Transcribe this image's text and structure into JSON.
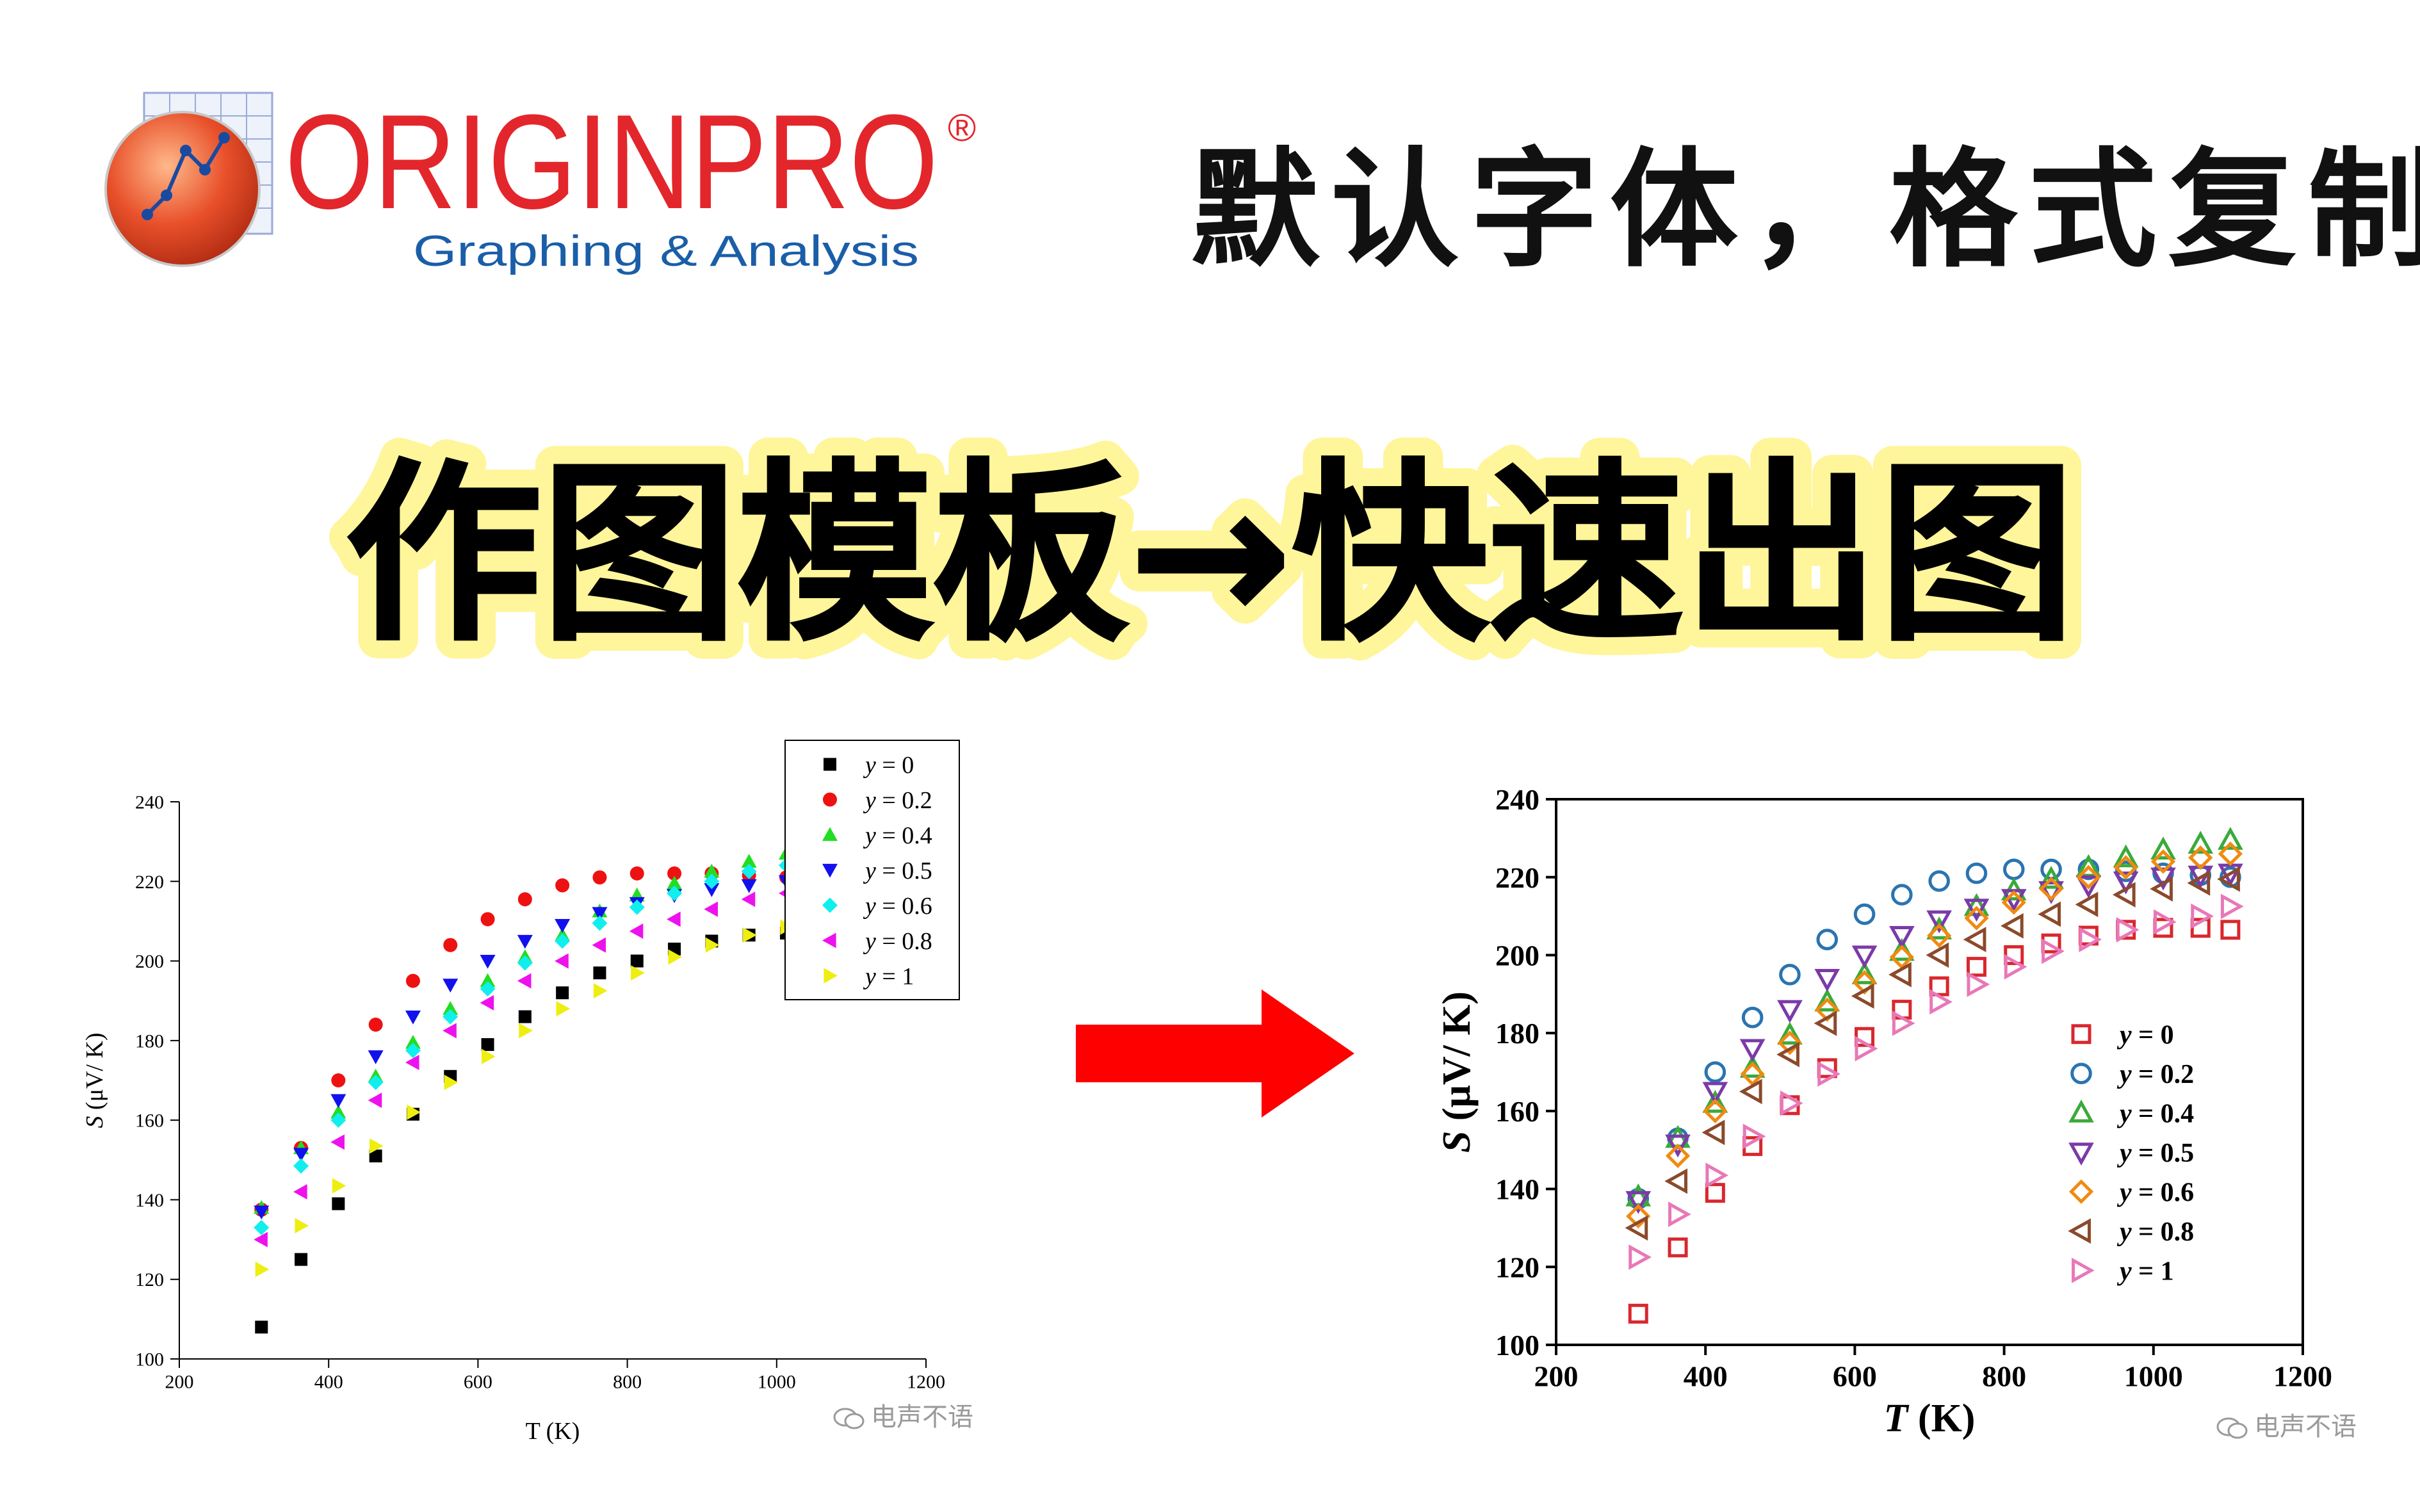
{
  "logo": {
    "brand": "ORIGINPRO",
    "registered": "®",
    "tagline": "Graphing & Analysis"
  },
  "subtitle": "默认字体，格式复制",
  "headline": "作图模板→快速出图",
  "watermark_left": "电声不语",
  "watermark_right": "电声不语",
  "chart_data": [
    {
      "type": "scatter",
      "title": "",
      "xlabel": "T (K)",
      "ylabel_var": "S",
      "ylabel_unit": " (μV/ K)",
      "xlim": [
        200,
        1200
      ],
      "ylim": [
        100,
        240
      ],
      "xticks": [
        200,
        400,
        600,
        800,
        1000,
        1200
      ],
      "yticks": [
        100,
        120,
        140,
        160,
        180,
        200,
        220,
        240
      ],
      "legend": "top-right",
      "legend_labels": [
        "y = 0",
        "y = 0.2",
        "y = 0.4",
        "y = 0.5",
        "y = 0.6",
        "y = 0.8",
        "y = 1"
      ],
      "x": [
        310,
        363,
        413,
        463,
        513,
        563,
        613,
        663,
        713,
        763,
        813,
        863,
        913,
        963,
        1013,
        1063,
        1103
      ],
      "series": [
        {
          "name": "y = 0",
          "marker": "square",
          "color": "#000000",
          "filled": true,
          "values": [
            108,
            125,
            139,
            151,
            161.5,
            171,
            179,
            186,
            192,
            197,
            200,
            203,
            205,
            206.5,
            207,
            207,
            206.5
          ]
        },
        {
          "name": "y = 0.2",
          "marker": "circle",
          "color": "#ee1111",
          "filled": true,
          "values": [
            137.5,
            153,
            170,
            184,
            195,
            204,
            210.5,
            215.5,
            219,
            221,
            222,
            222,
            222,
            221.5,
            221,
            220.5,
            220
          ]
        },
        {
          "name": "y = 0.4",
          "marker": "triangle-up",
          "color": "#22dd22",
          "filled": true,
          "values": [
            138,
            153,
            162,
            171,
            179.5,
            188,
            195,
            201,
            206.5,
            212.5,
            216.5,
            219.5,
            222.5,
            225,
            227,
            228.5,
            229.5
          ]
        },
        {
          "name": "y = 0.5",
          "marker": "triangle-down",
          "color": "#1111ee",
          "filled": true,
          "values": [
            137,
            151.5,
            165,
            176,
            186,
            194,
            200,
            205,
            209,
            212,
            214.5,
            216.5,
            218,
            219,
            220,
            220.5,
            221
          ]
        },
        {
          "name": "y = 0.6",
          "marker": "diamond",
          "color": "#11eeee",
          "filled": true,
          "values": [
            133,
            148.5,
            160,
            169.5,
            177.5,
            186,
            193,
            199.5,
            205,
            209.5,
            213.5,
            217,
            220,
            222.5,
            224,
            225,
            226
          ]
        },
        {
          "name": "y = 0.8",
          "marker": "triangle-left",
          "color": "#ee11ee",
          "filled": true,
          "values": [
            130,
            142,
            154.5,
            165,
            174.5,
            182.5,
            189.5,
            195,
            200,
            204,
            207.5,
            210.5,
            213,
            215.5,
            217,
            218.5,
            219.5
          ]
        },
        {
          "name": "y = 1",
          "marker": "triangle-right",
          "color": "#eeee11",
          "filled": true,
          "values": [
            122.5,
            133.5,
            143.5,
            153.5,
            162,
            169.5,
            176,
            182.5,
            188,
            192.5,
            197,
            201,
            204,
            206.5,
            208.5,
            210,
            212.5
          ]
        }
      ]
    },
    {
      "type": "scatter",
      "title": "",
      "xlabel_var": "T",
      "xlabel_unit": " (K)",
      "ylabel_var": "S",
      "ylabel_unit": " (μV/ K)",
      "xlim": [
        200,
        1200
      ],
      "ylim": [
        100,
        240
      ],
      "xticks": [
        200,
        400,
        600,
        800,
        1000,
        1200
      ],
      "yticks": [
        100,
        120,
        140,
        160,
        180,
        200,
        220,
        240
      ],
      "legend": "lower-right",
      "legend_labels": [
        "y = 0",
        "y = 0.2",
        "y = 0.4",
        "y = 0.5",
        "y = 0.6",
        "y = 0.8",
        "y = 1"
      ],
      "x": [
        310,
        363,
        413,
        463,
        513,
        563,
        613,
        663,
        713,
        763,
        813,
        863,
        913,
        963,
        1013,
        1063,
        1103
      ],
      "series": [
        {
          "name": "y = 0",
          "marker": "square",
          "color": "#d9272e",
          "filled": false,
          "values": [
            108,
            125,
            139,
            151,
            161.5,
            171,
            179,
            186,
            192,
            197,
            200,
            203,
            205,
            206.5,
            207,
            207,
            206.5
          ]
        },
        {
          "name": "y = 0.2",
          "marker": "circle",
          "color": "#2a74b0",
          "filled": false,
          "values": [
            137.5,
            153,
            170,
            184,
            195,
            204,
            210.5,
            215.5,
            219,
            221,
            222,
            222,
            222,
            221.5,
            221,
            220.5,
            220
          ]
        },
        {
          "name": "y = 0.4",
          "marker": "triangle-up",
          "color": "#3aaa3a",
          "filled": false,
          "values": [
            138,
            153,
            162,
            171,
            179.5,
            188,
            195,
            201,
            206.5,
            212.5,
            216.5,
            219.5,
            222.5,
            225,
            227,
            228.5,
            229.5
          ]
        },
        {
          "name": "y = 0.5",
          "marker": "triangle-down",
          "color": "#7b3aa8",
          "filled": false,
          "values": [
            137,
            151.5,
            165,
            176,
            186,
            194,
            200,
            205,
            209,
            212,
            214.5,
            216.5,
            218,
            219,
            220,
            220.5,
            221
          ]
        },
        {
          "name": "y = 0.6",
          "marker": "diamond",
          "color": "#f08a10",
          "filled": false,
          "values": [
            133,
            148.5,
            160,
            169.5,
            177.5,
            186,
            193,
            199.5,
            205,
            209.5,
            213.5,
            217,
            220,
            222.5,
            224,
            225,
            226
          ]
        },
        {
          "name": "y = 0.8",
          "marker": "triangle-left",
          "color": "#8b4a2b",
          "filled": false,
          "values": [
            130,
            142,
            154.5,
            165,
            174.5,
            182.5,
            189.5,
            195,
            200,
            204,
            207.5,
            210.5,
            213,
            215.5,
            217,
            218.5,
            219.5
          ]
        },
        {
          "name": "y = 1",
          "marker": "triangle-right",
          "color": "#e878b8",
          "filled": false,
          "values": [
            122.5,
            133.5,
            143.5,
            153.5,
            162,
            169.5,
            176,
            182.5,
            188,
            192.5,
            197,
            201,
            204,
            206.5,
            208.5,
            210,
            212.5
          ]
        }
      ]
    }
  ],
  "colors": {
    "brand_red": "#e3262b",
    "tagline_blue": "#1a5ea8",
    "arrow_red": "#ff0000",
    "headline_glow": "#fff59a"
  }
}
